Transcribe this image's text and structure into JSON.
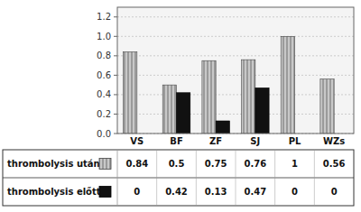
{
  "chart_data": {
    "type": "bar",
    "categories": [
      "VS",
      "BF",
      "ZF",
      "SJ",
      "PL",
      "WZs"
    ],
    "series": [
      {
        "name": "thrombolysis után",
        "color": "#c8c8c8",
        "values": [
          0.84,
          0.5,
          0.75,
          0.76,
          1.0,
          0.56
        ]
      },
      {
        "name": "thrombolysis előtt",
        "color": "#111111",
        "values": [
          0.0,
          0.42,
          0.13,
          0.47,
          0.0,
          0.0
        ]
      }
    ],
    "ylim": [
      0,
      1.3
    ],
    "yticks": [
      {
        "value": 0,
        "label": "0.0"
      },
      0.2,
      0.4,
      0.6,
      0.8,
      {
        "value": 1.0,
        "label": "1.0"
      },
      1.2
    ],
    "grid": true,
    "data_labels": true
  }
}
